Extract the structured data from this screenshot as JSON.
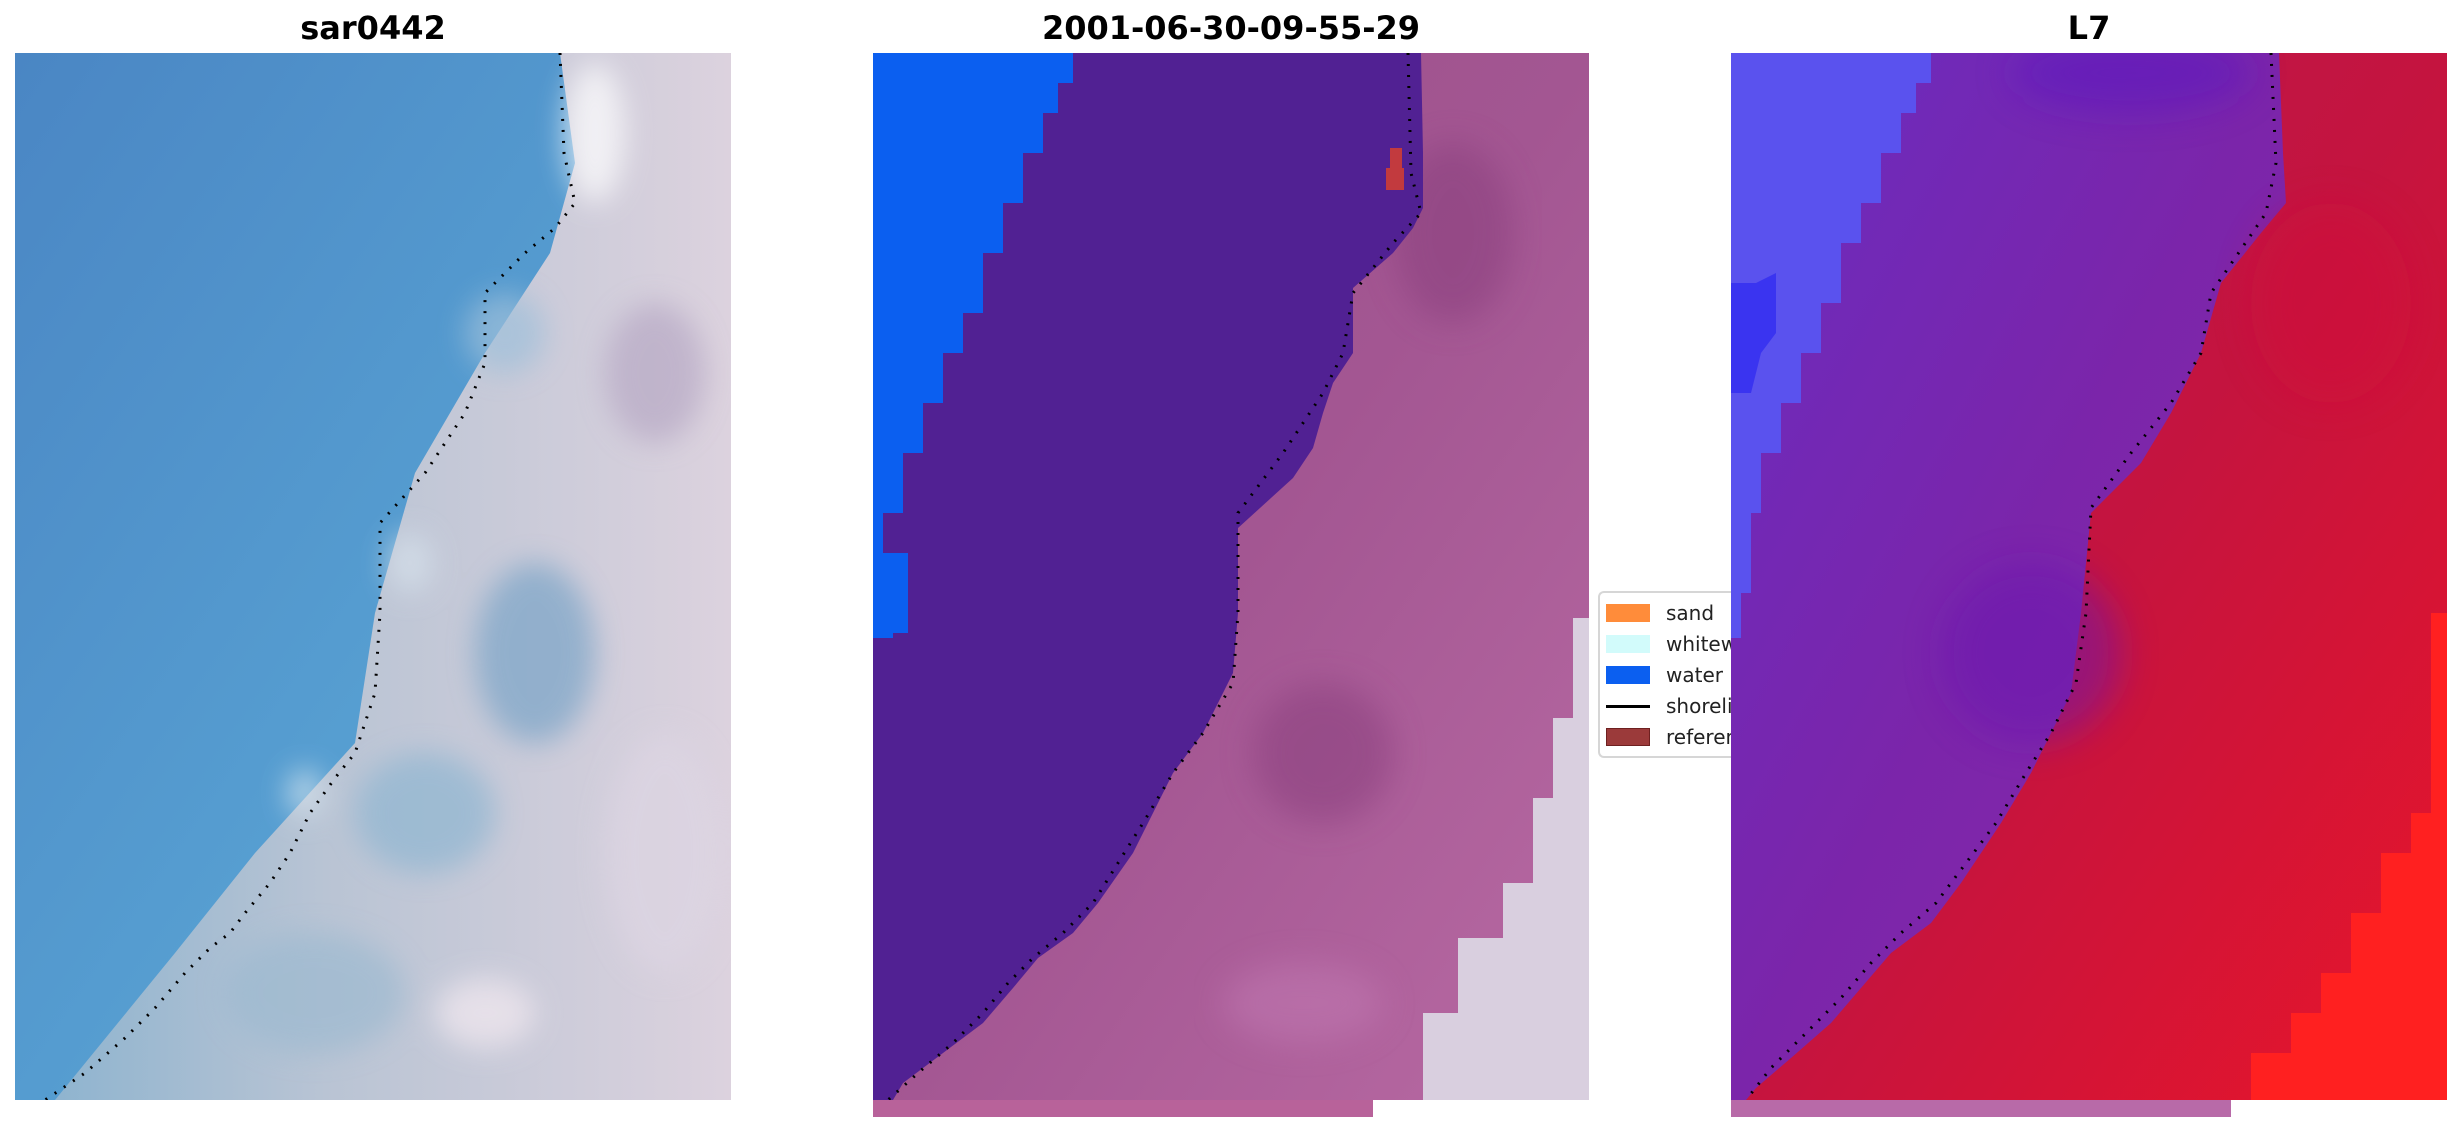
{
  "panels": [
    {
      "title": "sar0442"
    },
    {
      "title": "2001-06-30-09-55-29"
    },
    {
      "title": "L7"
    }
  ],
  "legend": {
    "items": [
      {
        "label": "sand",
        "color": "#ff8c3a",
        "kind": "patch"
      },
      {
        "label": "whitewater",
        "color": "#d2fbfb",
        "kind": "patch"
      },
      {
        "label": "water",
        "color": "#0b5ff0",
        "kind": "patch"
      },
      {
        "label": "shoreline",
        "color": "#000000",
        "kind": "line"
      },
      {
        "label": "reference",
        "color": "#9b3a3a",
        "kind": "patch"
      }
    ]
  },
  "colors": {
    "water_blue": "#0b5ff0",
    "water_class_purple": "#512193",
    "land_pink": "#a5578e",
    "satellite_water": "#4a8cc9",
    "satellite_land": "#d3c8d6",
    "l7_water": "#5b4fe0",
    "l7_mid": "#7a26b0",
    "l7_land": "#c8123e"
  }
}
